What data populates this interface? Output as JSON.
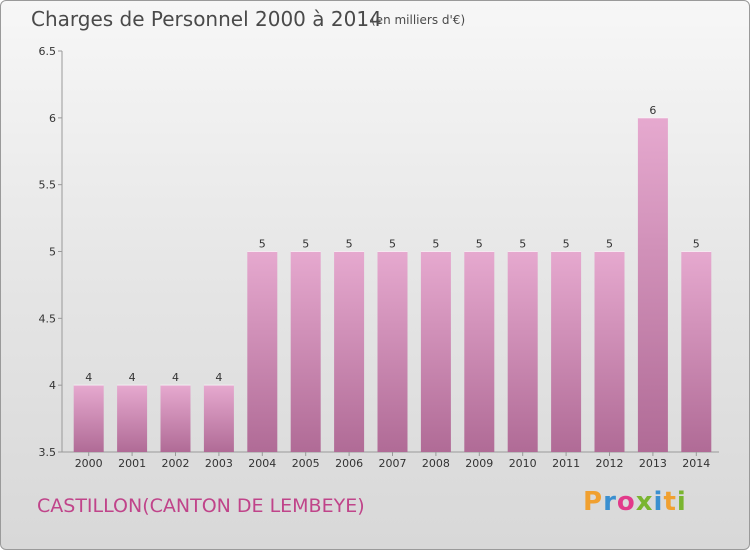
{
  "header": {
    "title": "Charges de Personnel 2000 à 2014",
    "subtitle": "(en milliers d'€)"
  },
  "footer": {
    "place": "CASTILLON(CANTON DE LEMBEYE)",
    "logo": [
      "P",
      "r",
      "o",
      "x",
      "i",
      "t",
      "i"
    ],
    "logo_colors": [
      "#f0a030",
      "#3a8fd0",
      "#e23a8a",
      "#7ab530",
      "#3a8fd0",
      "#f0a030",
      "#7ab530"
    ]
  },
  "colors": {
    "bar_top": "#e6a9cf",
    "bar_bottom": "#b06b96",
    "accent": "#c0448a"
  },
  "chart_data": {
    "type": "bar",
    "title": "Charges de Personnel 2000 à 2014",
    "subtitle": "(en milliers d'€)",
    "xlabel": "",
    "ylabel": "",
    "categories": [
      "2000",
      "2001",
      "2002",
      "2003",
      "2004",
      "2005",
      "2006",
      "2007",
      "2008",
      "2009",
      "2010",
      "2011",
      "2012",
      "2013",
      "2014"
    ],
    "values": [
      4,
      4,
      4,
      4,
      5,
      5,
      5,
      5,
      5,
      5,
      5,
      5,
      5,
      6,
      5
    ],
    "data_labels": [
      "4",
      "4",
      "4",
      "4",
      "5",
      "5",
      "5",
      "5",
      "5",
      "5",
      "5",
      "5",
      "5",
      "6",
      "5"
    ],
    "ylim": [
      3.5,
      6.5
    ],
    "yticks": [
      3.5,
      4,
      4.5,
      5,
      5.5,
      6,
      6.5
    ],
    "ytick_labels": [
      "3.5",
      "4",
      "4.5",
      "5",
      "5.5",
      "6",
      "6.5"
    ],
    "grid": false,
    "legend": "none"
  }
}
